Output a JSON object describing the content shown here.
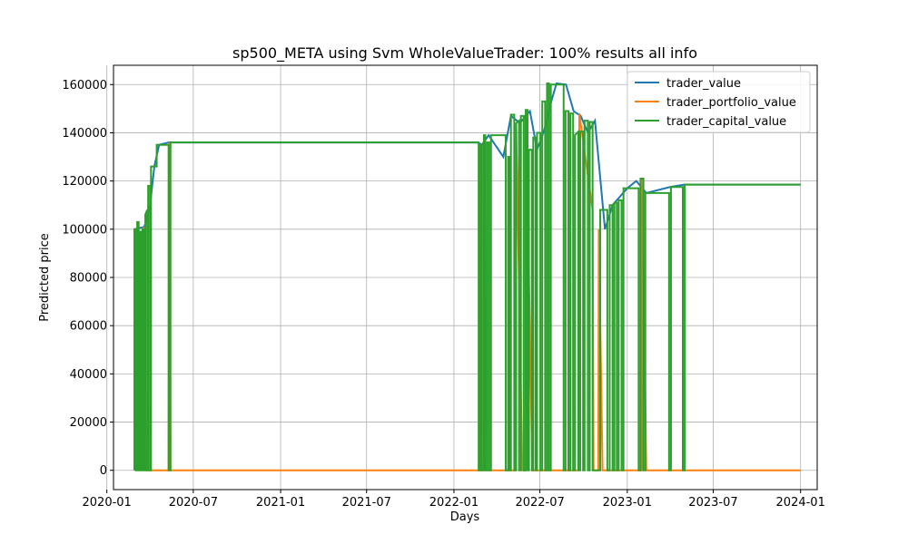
{
  "chart_data": {
    "type": "line",
    "title": "sp500_META using Svm WholeValueTrader: 100% results all info",
    "xlabel": "Days",
    "ylabel": "Predicted price",
    "xlim": [
      "2020-01-15",
      "2024-02-05"
    ],
    "ylim": [
      -8000,
      168000
    ],
    "grid": true,
    "legend_position": "top-right",
    "x_ticks": [
      {
        "date": "2020-01-01",
        "label": "2020-01"
      },
      {
        "date": "2020-07-01",
        "label": "2020-07"
      },
      {
        "date": "2021-01-01",
        "label": "2021-01"
      },
      {
        "date": "2021-07-01",
        "label": "2021-07"
      },
      {
        "date": "2022-01-01",
        "label": "2022-01"
      },
      {
        "date": "2022-07-01",
        "label": "2022-07"
      },
      {
        "date": "2023-01-01",
        "label": "2023-01"
      },
      {
        "date": "2023-07-01",
        "label": "2023-07"
      },
      {
        "date": "2024-01-01",
        "label": "2024-01"
      }
    ],
    "y_ticks": [
      {
        "value": 0,
        "label": "0"
      },
      {
        "value": 20000,
        "label": "20000"
      },
      {
        "value": 40000,
        "label": "40000"
      },
      {
        "value": 60000,
        "label": "60000"
      },
      {
        "value": 80000,
        "label": "80000"
      },
      {
        "value": 100000,
        "label": "100000"
      },
      {
        "value": 120000,
        "label": "120000"
      },
      {
        "value": 140000,
        "label": "140000"
      },
      {
        "value": 160000,
        "label": "160000"
      }
    ],
    "series": [
      {
        "name": "trader_value",
        "color": "#1f77b4",
        "points": [
          [
            "2020-02-28",
            100000
          ],
          [
            "2020-03-20",
            101000
          ],
          [
            "2020-04-01",
            110000
          ],
          [
            "2020-04-10",
            126000
          ],
          [
            "2020-04-20",
            135000
          ],
          [
            "2020-05-10",
            136000
          ],
          [
            "2021-01-01",
            136000
          ],
          [
            "2022-02-20",
            136000
          ],
          [
            "2022-03-01",
            135000
          ],
          [
            "2022-03-15",
            139000
          ],
          [
            "2022-04-15",
            130000
          ],
          [
            "2022-05-01",
            147000
          ],
          [
            "2022-05-20",
            144000
          ],
          [
            "2022-06-10",
            149000
          ],
          [
            "2022-06-25",
            133000
          ],
          [
            "2022-07-10",
            141000
          ],
          [
            "2022-07-25",
            153000
          ],
          [
            "2022-08-05",
            160500
          ],
          [
            "2022-08-25",
            160000
          ],
          [
            "2022-09-10",
            149000
          ],
          [
            "2022-09-25",
            147000
          ],
          [
            "2022-10-10",
            140000
          ],
          [
            "2022-10-25",
            145000
          ],
          [
            "2022-11-15",
            100000
          ],
          [
            "2022-12-01",
            110000
          ],
          [
            "2023-01-01",
            117000
          ],
          [
            "2023-01-20",
            120000
          ],
          [
            "2023-02-10",
            115000
          ],
          [
            "2023-04-01",
            117500
          ],
          [
            "2023-05-01",
            118500
          ],
          [
            "2024-01-01",
            118500
          ]
        ]
      },
      {
        "name": "trader_portfolio_value",
        "color": "#ff7f0e",
        "points": [
          [
            "2020-02-28",
            100000
          ],
          [
            "2020-03-01",
            0
          ],
          [
            "2020-03-05",
            103000
          ],
          [
            "2020-03-08",
            0
          ],
          [
            "2020-03-12",
            99000
          ],
          [
            "2020-03-15",
            0
          ],
          [
            "2020-03-20",
            101000
          ],
          [
            "2020-03-23",
            0
          ],
          [
            "2020-05-10",
            0
          ],
          [
            "2020-05-12",
            136000
          ],
          [
            "2020-05-14",
            0
          ],
          [
            "2022-02-25",
            0
          ],
          [
            "2022-02-26",
            135000
          ],
          [
            "2022-02-28",
            0
          ],
          [
            "2022-03-05",
            0
          ],
          [
            "2022-03-06",
            139000
          ],
          [
            "2022-03-12",
            0
          ],
          [
            "2022-05-10",
            0
          ],
          [
            "2022-05-12",
            144000
          ],
          [
            "2022-05-25",
            0
          ],
          [
            "2022-06-01",
            0
          ],
          [
            "2022-06-02",
            149000
          ],
          [
            "2022-06-15",
            0
          ],
          [
            "2022-09-20",
            0
          ],
          [
            "2022-09-22",
            148000
          ],
          [
            "2022-10-20",
            108000
          ],
          [
            "2022-10-22",
            0
          ],
          [
            "2022-11-01",
            0
          ],
          [
            "2022-11-02",
            100000
          ],
          [
            "2022-11-10",
            0
          ],
          [
            "2023-02-01",
            0
          ],
          [
            "2023-02-02",
            121000
          ],
          [
            "2023-02-10",
            0
          ],
          [
            "2024-01-01",
            0
          ]
        ]
      },
      {
        "name": "trader_capital_value",
        "color": "#2ca02c",
        "points": [
          [
            "2020-02-28",
            0
          ],
          [
            "2020-02-28",
            100000
          ],
          [
            "2020-03-02",
            100000
          ],
          [
            "2020-03-02",
            0
          ],
          [
            "2020-03-05",
            0
          ],
          [
            "2020-03-05",
            103000
          ],
          [
            "2020-03-08",
            103000
          ],
          [
            "2020-03-08",
            0
          ],
          [
            "2020-03-10",
            0
          ],
          [
            "2020-03-10",
            99000
          ],
          [
            "2020-03-13",
            99000
          ],
          [
            "2020-03-13",
            0
          ],
          [
            "2020-03-16",
            0
          ],
          [
            "2020-03-16",
            100000
          ],
          [
            "2020-03-19",
            100000
          ],
          [
            "2020-03-19",
            0
          ],
          [
            "2020-03-22",
            0
          ],
          [
            "2020-03-22",
            106000
          ],
          [
            "2020-03-26",
            108000
          ],
          [
            "2020-03-26",
            0
          ],
          [
            "2020-03-28",
            0
          ],
          [
            "2020-03-28",
            118000
          ],
          [
            "2020-04-01",
            118000
          ],
          [
            "2020-04-01",
            0
          ],
          [
            "2020-04-03",
            0
          ],
          [
            "2020-04-03",
            126000
          ],
          [
            "2020-04-15",
            126000
          ],
          [
            "2020-04-15",
            135000
          ],
          [
            "2020-05-10",
            135000
          ],
          [
            "2020-05-10",
            0
          ],
          [
            "2020-05-14",
            0
          ],
          [
            "2020-05-14",
            136000
          ],
          [
            "2022-02-22",
            136000
          ],
          [
            "2022-02-22",
            0
          ],
          [
            "2022-02-26",
            0
          ],
          [
            "2022-02-26",
            135000
          ],
          [
            "2022-03-01",
            135000
          ],
          [
            "2022-03-01",
            0
          ],
          [
            "2022-03-05",
            0
          ],
          [
            "2022-03-05",
            139000
          ],
          [
            "2022-03-08",
            139000
          ],
          [
            "2022-03-08",
            0
          ],
          [
            "2022-03-12",
            0
          ],
          [
            "2022-03-12",
            136000
          ],
          [
            "2022-03-16",
            136000
          ],
          [
            "2022-03-16",
            0
          ],
          [
            "2022-03-20",
            0
          ],
          [
            "2022-03-20",
            139000
          ],
          [
            "2022-04-20",
            139000
          ],
          [
            "2022-04-20",
            0
          ],
          [
            "2022-04-25",
            0
          ],
          [
            "2022-04-25",
            130000
          ],
          [
            "2022-04-28",
            130000
          ],
          [
            "2022-04-28",
            0
          ],
          [
            "2022-05-01",
            0
          ],
          [
            "2022-05-01",
            147500
          ],
          [
            "2022-05-08",
            147500
          ],
          [
            "2022-05-08",
            0
          ],
          [
            "2022-05-12",
            0
          ],
          [
            "2022-05-12",
            144000
          ],
          [
            "2022-05-18",
            145000
          ],
          [
            "2022-05-18",
            0
          ],
          [
            "2022-05-22",
            0
          ],
          [
            "2022-05-22",
            147000
          ],
          [
            "2022-05-28",
            147000
          ],
          [
            "2022-05-28",
            0
          ],
          [
            "2022-06-01",
            0
          ],
          [
            "2022-06-01",
            149500
          ],
          [
            "2022-06-05",
            149500
          ],
          [
            "2022-06-05",
            0
          ],
          [
            "2022-06-08",
            0
          ],
          [
            "2022-06-08",
            133000
          ],
          [
            "2022-06-14",
            133000
          ],
          [
            "2022-06-14",
            0
          ],
          [
            "2022-06-17",
            0
          ],
          [
            "2022-06-17",
            138000
          ],
          [
            "2022-06-22",
            138000
          ],
          [
            "2022-06-22",
            0
          ],
          [
            "2022-06-25",
            0
          ],
          [
            "2022-06-25",
            140000
          ],
          [
            "2022-07-02",
            140000
          ],
          [
            "2022-07-02",
            0
          ],
          [
            "2022-07-06",
            0
          ],
          [
            "2022-07-06",
            153000
          ],
          [
            "2022-07-12",
            153000
          ],
          [
            "2022-07-12",
            0
          ],
          [
            "2022-07-16",
            0
          ],
          [
            "2022-07-16",
            160500
          ],
          [
            "2022-07-20",
            160500
          ],
          [
            "2022-07-20",
            0
          ],
          [
            "2022-07-24",
            0
          ],
          [
            "2022-07-24",
            160000
          ],
          [
            "2022-08-20",
            160000
          ],
          [
            "2022-08-20",
            0
          ],
          [
            "2022-08-24",
            0
          ],
          [
            "2022-08-24",
            149000
          ],
          [
            "2022-08-30",
            149000
          ],
          [
            "2022-08-30",
            0
          ],
          [
            "2022-09-03",
            0
          ],
          [
            "2022-09-03",
            148000
          ],
          [
            "2022-09-09",
            148000
          ],
          [
            "2022-09-09",
            0
          ],
          [
            "2022-09-13",
            0
          ],
          [
            "2022-09-13",
            139000
          ],
          [
            "2022-09-20",
            140500
          ],
          [
            "2022-09-20",
            0
          ],
          [
            "2022-09-24",
            0
          ],
          [
            "2022-09-24",
            140500
          ],
          [
            "2022-09-30",
            140500
          ],
          [
            "2022-09-30",
            0
          ],
          [
            "2022-10-03",
            0
          ],
          [
            "2022-10-03",
            145000
          ],
          [
            "2022-10-10",
            145000
          ],
          [
            "2022-10-10",
            0
          ],
          [
            "2022-10-14",
            0
          ],
          [
            "2022-10-14",
            144500
          ],
          [
            "2022-10-20",
            144500
          ],
          [
            "2022-10-20",
            0
          ],
          [
            "2022-11-05",
            0
          ],
          [
            "2022-11-05",
            108000
          ],
          [
            "2022-11-20",
            108000
          ],
          [
            "2022-11-20",
            0
          ],
          [
            "2022-11-25",
            0
          ],
          [
            "2022-11-25",
            110000
          ],
          [
            "2022-12-01",
            110000
          ],
          [
            "2022-12-01",
            0
          ],
          [
            "2022-12-05",
            0
          ],
          [
            "2022-12-05",
            111000
          ],
          [
            "2022-12-10",
            111000
          ],
          [
            "2022-12-10",
            0
          ],
          [
            "2022-12-14",
            0
          ],
          [
            "2022-12-14",
            112000
          ],
          [
            "2022-12-20",
            112000
          ],
          [
            "2022-12-20",
            0
          ],
          [
            "2022-12-24",
            0
          ],
          [
            "2022-12-24",
            117000
          ],
          [
            "2023-01-25",
            117000
          ],
          [
            "2023-01-25",
            0
          ],
          [
            "2023-01-29",
            0
          ],
          [
            "2023-01-29",
            121000
          ],
          [
            "2023-02-04",
            121000
          ],
          [
            "2023-02-04",
            0
          ],
          [
            "2023-02-08",
            0
          ],
          [
            "2023-02-08",
            115000
          ],
          [
            "2023-03-30",
            115000
          ],
          [
            "2023-03-30",
            0
          ],
          [
            "2023-04-03",
            0
          ],
          [
            "2023-04-03",
            117500
          ],
          [
            "2023-04-28",
            117500
          ],
          [
            "2023-04-28",
            0
          ],
          [
            "2023-05-02",
            0
          ],
          [
            "2023-05-02",
            118500
          ],
          [
            "2024-01-01",
            118500
          ]
        ]
      }
    ]
  }
}
